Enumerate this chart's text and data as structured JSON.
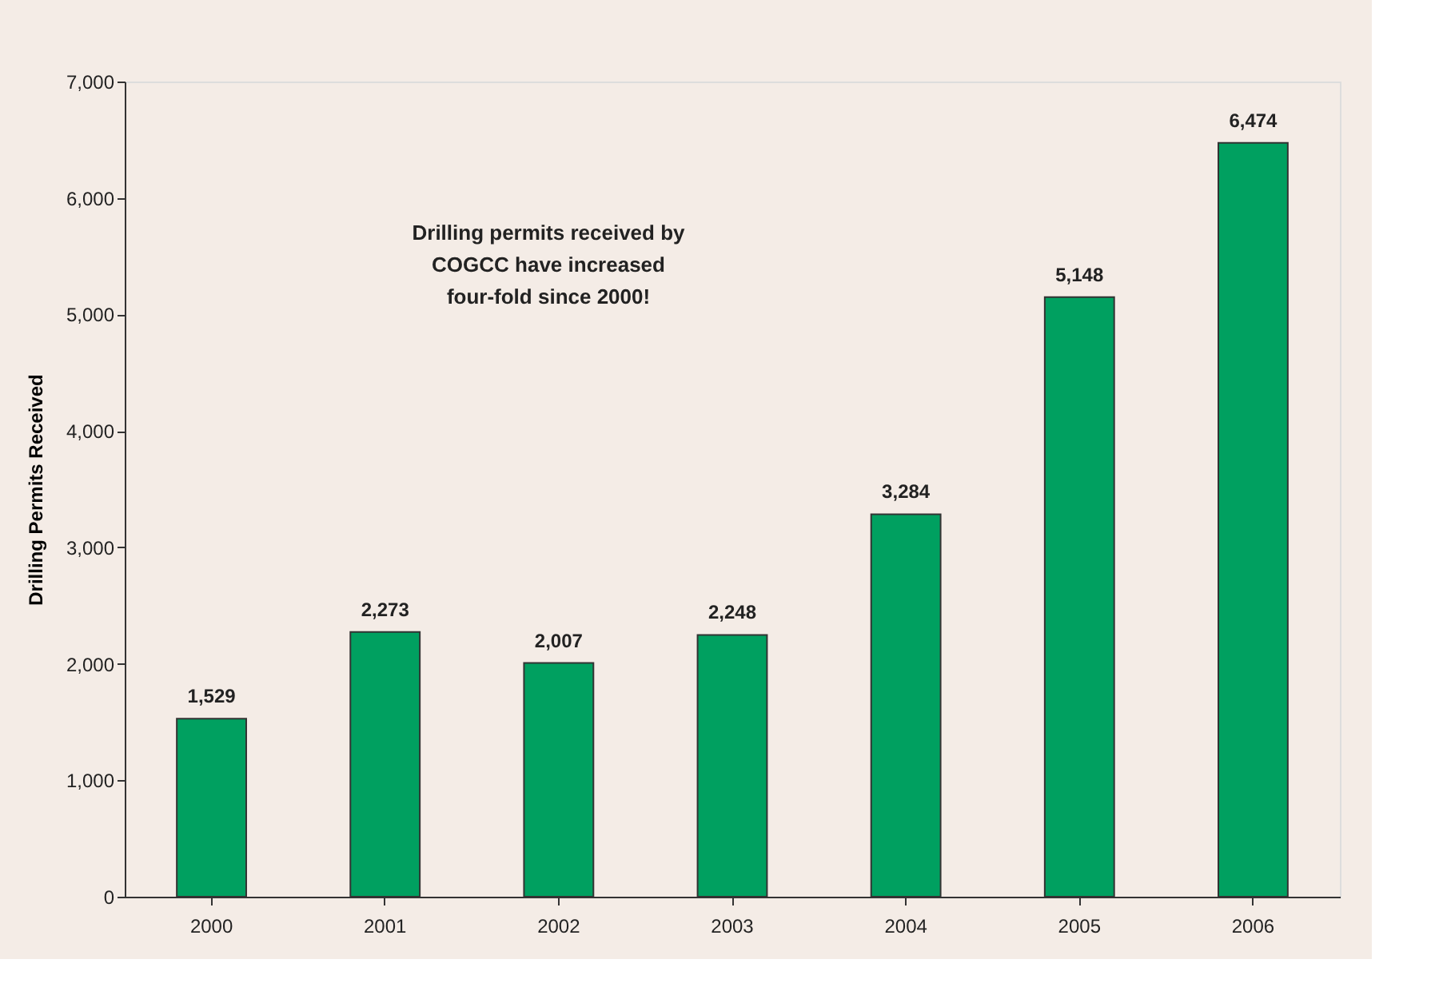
{
  "chart_data": {
    "type": "bar",
    "ylabel": "Drilling Permits Received",
    "categories": [
      "2000",
      "2001",
      "2002",
      "2003",
      "2004",
      "2005",
      "2006"
    ],
    "values": [
      1529,
      2273,
      2007,
      2248,
      3284,
      5148,
      6474
    ],
    "value_labels": [
      "1,529",
      "2,273",
      "2,007",
      "2,248",
      "3,284",
      "5,148",
      "6,474"
    ],
    "color": "#00a060",
    "ylim": [
      0,
      7000
    ],
    "yticks": [
      0,
      {
        "value": 1000,
        "label": "1,000"
      },
      {
        "value": 2000,
        "label": "2,000"
      },
      {
        "value": 3000,
        "label": "3,000"
      },
      {
        "value": 4000,
        "label": "4,000"
      },
      {
        "value": 5000,
        "label": "5,000"
      },
      {
        "value": 6000,
        "label": "6,000"
      },
      {
        "value": 7000,
        "label": "7,000"
      }
    ],
    "grid": false,
    "annotations": [
      "Drilling permits received by\nCOGCC have increased\nfour-fold since 2000!"
    ]
  }
}
